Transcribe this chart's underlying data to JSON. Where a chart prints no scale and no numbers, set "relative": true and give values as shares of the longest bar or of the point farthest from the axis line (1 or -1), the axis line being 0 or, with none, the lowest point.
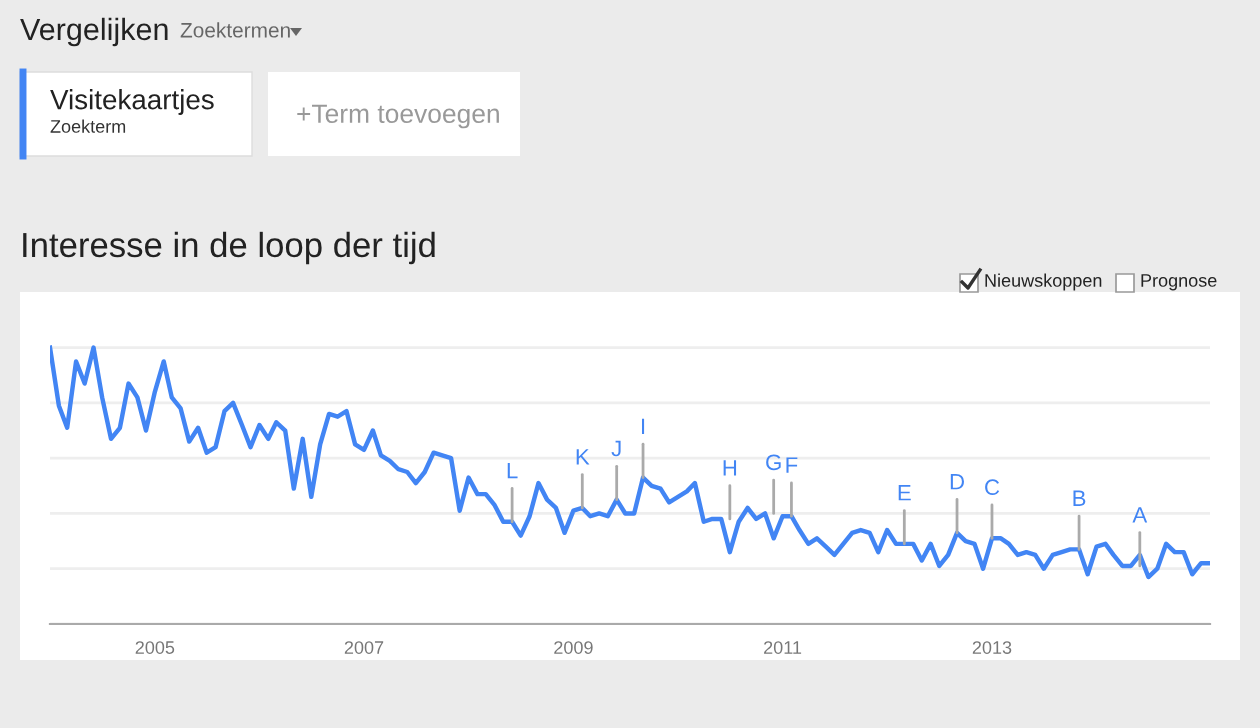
{
  "chart_data": {
    "type": "line",
    "relative": true,
    "title": "Interesse in de loop der tijd",
    "x": [
      "2004-01",
      "2004-02",
      "2004-03",
      "2004-04",
      "2004-05",
      "2004-06",
      "2004-07",
      "2004-08",
      "2004-09",
      "2004-10",
      "2004-11",
      "2004-12",
      "2005-01",
      "2005-02",
      "2005-03",
      "2005-04",
      "2005-05",
      "2005-06",
      "2005-07",
      "2005-08",
      "2005-09",
      "2005-10",
      "2005-11",
      "2005-12",
      "2006-01",
      "2006-02",
      "2006-03",
      "2006-04",
      "2006-05",
      "2006-06",
      "2006-07",
      "2006-08",
      "2006-09",
      "2006-10",
      "2006-11",
      "2006-12",
      "2007-01",
      "2007-02",
      "2007-03",
      "2007-04",
      "2007-05",
      "2007-06",
      "2007-07",
      "2007-08",
      "2007-09",
      "2007-10",
      "2007-11",
      "2007-12",
      "2008-01",
      "2008-02",
      "2008-03",
      "2008-04",
      "2008-05",
      "2008-06",
      "2008-07",
      "2008-08",
      "2008-09",
      "2008-10",
      "2008-11",
      "2008-12",
      "2009-01",
      "2009-02",
      "2009-03",
      "2009-04",
      "2009-05",
      "2009-06",
      "2009-07",
      "2009-08",
      "2009-09",
      "2009-10",
      "2009-11",
      "2009-12",
      "2010-01",
      "2010-02",
      "2010-03",
      "2010-04",
      "2010-05",
      "2010-06",
      "2010-07",
      "2010-08",
      "2010-09",
      "2010-10",
      "2010-11",
      "2010-12",
      "2011-01",
      "2011-02",
      "2011-03",
      "2011-04",
      "2011-05",
      "2011-06",
      "2011-07",
      "2011-08",
      "2011-09",
      "2011-10",
      "2011-11",
      "2011-12",
      "2012-01",
      "2012-02",
      "2012-03",
      "2012-04",
      "2012-05",
      "2012-06",
      "2012-07",
      "2012-08",
      "2012-09",
      "2012-10",
      "2012-11",
      "2012-12",
      "2013-01",
      "2013-02",
      "2013-03",
      "2013-04",
      "2013-05",
      "2013-06",
      "2013-07",
      "2013-08",
      "2013-09",
      "2013-10",
      "2013-11",
      "2013-12",
      "2014-01",
      "2014-02",
      "2014-03",
      "2014-04",
      "2014-05",
      "2014-06",
      "2014-07",
      "2014-08",
      "2014-09",
      "2014-10",
      "2014-11",
      "2014-12",
      "2015-01",
      "2015-02"
    ],
    "series": [
      {
        "name": "Visitekaartjes",
        "color": "#4285f4",
        "values": [
          1.0,
          0.79,
          0.71,
          0.95,
          0.87,
          1.0,
          0.82,
          0.67,
          0.71,
          0.87,
          0.82,
          0.7,
          0.84,
          0.95,
          0.82,
          0.78,
          0.66,
          0.71,
          0.62,
          0.64,
          0.77,
          0.8,
          0.72,
          0.64,
          0.72,
          0.67,
          0.73,
          0.7,
          0.49,
          0.67,
          0.46,
          0.65,
          0.76,
          0.75,
          0.77,
          0.65,
          0.63,
          0.7,
          0.61,
          0.59,
          0.56,
          0.55,
          0.51,
          0.55,
          0.62,
          0.61,
          0.6,
          0.41,
          0.53,
          0.47,
          0.47,
          0.43,
          0.37,
          0.37,
          0.32,
          0.39,
          0.51,
          0.45,
          0.42,
          0.33,
          0.41,
          0.42,
          0.39,
          0.4,
          0.39,
          0.45,
          0.4,
          0.4,
          0.53,
          0.5,
          0.49,
          0.44,
          0.46,
          0.48,
          0.51,
          0.37,
          0.38,
          0.38,
          0.26,
          0.37,
          0.42,
          0.38,
          0.4,
          0.31,
          0.39,
          0.39,
          0.34,
          0.29,
          0.31,
          0.28,
          0.25,
          0.29,
          0.33,
          0.34,
          0.33,
          0.26,
          0.34,
          0.29,
          0.29,
          0.29,
          0.23,
          0.29,
          0.21,
          0.25,
          0.33,
          0.3,
          0.29,
          0.2,
          0.31,
          0.31,
          0.29,
          0.25,
          0.26,
          0.25,
          0.2,
          0.25,
          0.26,
          0.27,
          0.27,
          0.18,
          0.28,
          0.29,
          0.25,
          0.21,
          0.21,
          0.25,
          0.17,
          0.2,
          0.29,
          0.26,
          0.26,
          0.18,
          0.22,
          0.22
        ]
      }
    ],
    "xlim": [
      "2004-01",
      "2015-02"
    ],
    "xticks": [
      {
        "value": "2005-01",
        "label": "2005"
      },
      {
        "value": "2007-01",
        "label": "2007"
      },
      {
        "value": "2009-01",
        "label": "2009"
      },
      {
        "value": "2011-01",
        "label": "2011"
      },
      {
        "value": "2013-01",
        "label": "2013"
      }
    ],
    "grid": "y",
    "legend": "top left",
    "marker": "none",
    "line_style": "solid",
    "annotations": [
      "Vergelijken",
      "Zoektermen",
      "Zoekterm",
      "+Term toevoegen",
      "Nieuwskoppen",
      "Prognose",
      {
        "text": "L",
        "x": "2008-06",
        "y": 0.37
      },
      {
        "text": "K",
        "x": "2009-02",
        "y": 0.42
      },
      {
        "text": "J",
        "x": "2009-06",
        "y": 0.45
      },
      {
        "text": "I",
        "x": "2009-09",
        "y": 0.53
      },
      {
        "text": "H",
        "x": "2010-07",
        "y": 0.38
      },
      {
        "text": "G",
        "x": "2010-12",
        "y": 0.4
      },
      {
        "text": "F",
        "x": "2011-02",
        "y": 0.39
      },
      {
        "text": "E",
        "x": "2012-03",
        "y": 0.29
      },
      {
        "text": "D",
        "x": "2012-09",
        "y": 0.33
      },
      {
        "text": "C",
        "x": "2013-01",
        "y": 0.31
      },
      {
        "text": "B",
        "x": "2013-11",
        "y": 0.27
      },
      {
        "text": "A",
        "x": "2014-06",
        "y": 0.21
      }
    ]
  }
}
